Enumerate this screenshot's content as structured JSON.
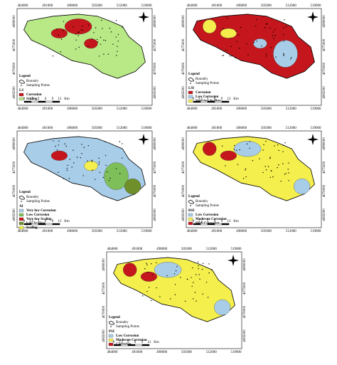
{
  "legend_title": "Legend",
  "boundary_label": "Boundry",
  "points_label": "Sampling Points",
  "scale_labels": [
    "0",
    "1.5",
    "3",
    "6",
    "9",
    "12",
    "Km"
  ],
  "xticks": [
    "484000",
    "491000",
    "498000",
    "505000",
    "512000",
    "519000"
  ],
  "yticks": [
    "4080000",
    "4075000",
    "4070000",
    "4065000"
  ],
  "panels": [
    {
      "index": "LS",
      "map_color": "#b8e986",
      "classes": [
        {
          "label": "Corrosion",
          "color": "#c4161c"
        },
        {
          "label": "Scaling",
          "color": "#b8e986"
        }
      ]
    },
    {
      "index": "LSI",
      "map_color": "#c4161c",
      "classes": [
        {
          "label": "Corrosion",
          "color": "#c4161c"
        },
        {
          "label": "Low Corrosion",
          "color": "#a8cde8"
        },
        {
          "label": "Very low Scaling",
          "color": "#f4ef4d"
        }
      ]
    },
    {
      "index": "AI",
      "map_color": "#a8cde8",
      "classes": [
        {
          "label": "Very low Corrosion",
          "color": "#a8cde8"
        },
        {
          "label": "Low Corrosion",
          "color": "#7fbf5a"
        },
        {
          "label": "Very low Scaling",
          "color": "#c4161c"
        },
        {
          "label": "Low Scaling",
          "color": "#6e8f2a"
        },
        {
          "label": "Scaling",
          "color": "#f4ef4d"
        }
      ]
    },
    {
      "index": "RSI",
      "map_color": "#f4ef4d",
      "classes": [
        {
          "label": "Low Corrosion",
          "color": "#a8cde8"
        },
        {
          "label": "Moderate Corrosion",
          "color": "#f4ef4d"
        },
        {
          "label": "High Corrosion",
          "color": "#c4161c"
        }
      ]
    },
    {
      "index": "PSI",
      "map_color": "#f4ef4d",
      "classes": [
        {
          "label": "Low Corrosion",
          "color": "#a8cde8"
        },
        {
          "label": "Moderate Corrosion",
          "color": "#f4ef4d"
        },
        {
          "label": "Corrosion",
          "color": "#c4161c"
        }
      ]
    }
  ]
}
